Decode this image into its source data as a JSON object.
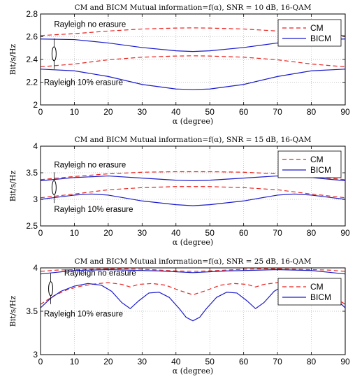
{
  "chart_data": [
    {
      "type": "line",
      "title": "CM and BICM Mutual information=f(α), SNR = 10 dB, 16-QAM",
      "xlabel": "α (degree)",
      "ylabel": "Bit/s/Hz",
      "xlim": [
        0,
        90
      ],
      "ylim": [
        2,
        2.8
      ],
      "xticks": [
        0,
        10,
        20,
        30,
        40,
        50,
        60,
        70,
        80,
        90
      ],
      "yticks": [
        2,
        2.2,
        2.4,
        2.6,
        2.8
      ],
      "xtick_labels": [
        "0",
        "10",
        "20",
        "30",
        "40",
        "50",
        "60",
        "70",
        "80",
        "90"
      ],
      "ytick_labels": [
        "2",
        "2.2",
        "2.4",
        "2.6",
        "2.8"
      ],
      "grid": true,
      "legend": {
        "position": "top-right",
        "entries": [
          {
            "label": "CM",
            "color": "#e8221e",
            "dash": true
          },
          {
            "label": "BICM",
            "color": "#1a1acc",
            "dash": false
          }
        ]
      },
      "annotations": [
        {
          "text": "Rayleigh no erasure",
          "x": 4,
          "y": 2.685
        },
        {
          "text": "Rayleigh 10% erasure",
          "x": 1,
          "y": 2.175
        }
      ],
      "ellipse": {
        "x": 4,
        "y": 2.45
      },
      "series": [
        {
          "name": "CM",
          "color": "#e8221e",
          "dash": true,
          "x": [
            0,
            10,
            20,
            30,
            40,
            45,
            50,
            60,
            70,
            80,
            90
          ],
          "y": [
            2.61,
            2.627,
            2.65,
            2.668,
            2.676,
            2.678,
            2.676,
            2.668,
            2.65,
            2.627,
            2.61
          ]
        },
        {
          "name": "BICM",
          "color": "#1a1acc",
          "dash": false,
          "x": [
            0,
            10,
            20,
            30,
            40,
            45,
            50,
            60,
            70,
            80,
            90
          ],
          "y": [
            2.58,
            2.575,
            2.545,
            2.505,
            2.476,
            2.47,
            2.476,
            2.505,
            2.545,
            2.575,
            2.58
          ]
        },
        {
          "name": "CM",
          "color": "#e8221e",
          "dash": true,
          "x": [
            0,
            10,
            20,
            30,
            40,
            45,
            50,
            60,
            70,
            80,
            90
          ],
          "y": [
            2.335,
            2.36,
            2.397,
            2.42,
            2.43,
            2.432,
            2.43,
            2.42,
            2.397,
            2.36,
            2.335
          ]
        },
        {
          "name": "BICM",
          "color": "#1a1acc",
          "dash": false,
          "x": [
            0,
            10,
            20,
            30,
            40,
            45,
            50,
            60,
            70,
            80,
            90
          ],
          "y": [
            2.315,
            2.3,
            2.25,
            2.18,
            2.14,
            2.135,
            2.14,
            2.18,
            2.25,
            2.3,
            2.315
          ]
        }
      ]
    },
    {
      "type": "line",
      "title": "CM and BICM Mutual information=f(α), SNR = 15 dB, 16-QAM",
      "xlabel": "α (degree)",
      "ylabel": "Bit/s/Hz",
      "xlim": [
        0,
        90
      ],
      "ylim": [
        2.5,
        4
      ],
      "xticks": [
        0,
        10,
        20,
        30,
        40,
        50,
        60,
        70,
        80,
        90
      ],
      "yticks": [
        2.5,
        3,
        3.5,
        4
      ],
      "xtick_labels": [
        "0",
        "10",
        "20",
        "30",
        "40",
        "50",
        "60",
        "70",
        "80",
        "90"
      ],
      "ytick_labels": [
        "2.5",
        "3",
        "3.5",
        "4"
      ],
      "grid": true,
      "legend": {
        "position": "top-right",
        "entries": [
          {
            "label": "CM",
            "color": "#e8221e",
            "dash": true
          },
          {
            "label": "BICM",
            "color": "#1a1acc",
            "dash": false
          }
        ]
      },
      "annotations": [
        {
          "text": "Rayleigh no erasure",
          "x": 4,
          "y": 3.6
        },
        {
          "text": "Rayleigh 10% erasure",
          "x": 4,
          "y": 2.76
        }
      ],
      "ellipse": {
        "x": 4,
        "y": 3.22
      },
      "series": [
        {
          "name": "CM",
          "color": "#e8221e",
          "dash": true,
          "x": [
            0,
            10,
            20,
            30,
            40,
            45,
            50,
            60,
            70,
            80,
            90
          ],
          "y": [
            3.37,
            3.43,
            3.48,
            3.51,
            3.52,
            3.52,
            3.52,
            3.51,
            3.48,
            3.43,
            3.37
          ]
        },
        {
          "name": "BICM",
          "color": "#1a1acc",
          "dash": false,
          "x": [
            0,
            5,
            10,
            20,
            30,
            40,
            45,
            50,
            60,
            70,
            80,
            85,
            90
          ],
          "y": [
            3.35,
            3.38,
            3.41,
            3.44,
            3.4,
            3.36,
            3.35,
            3.36,
            3.4,
            3.44,
            3.41,
            3.38,
            3.35
          ]
        },
        {
          "name": "CM",
          "color": "#e8221e",
          "dash": true,
          "x": [
            0,
            10,
            20,
            30,
            40,
            45,
            50,
            60,
            70,
            80,
            90
          ],
          "y": [
            3.03,
            3.1,
            3.18,
            3.22,
            3.24,
            3.24,
            3.24,
            3.22,
            3.18,
            3.1,
            3.03
          ]
        },
        {
          "name": "BICM",
          "color": "#1a1acc",
          "dash": false,
          "x": [
            0,
            5,
            10,
            15,
            20,
            30,
            40,
            45,
            50,
            60,
            70,
            75,
            80,
            85,
            90
          ],
          "y": [
            3.0,
            3.04,
            3.08,
            3.1,
            3.08,
            2.97,
            2.9,
            2.88,
            2.9,
            2.97,
            3.08,
            3.1,
            3.08,
            3.04,
            3.0
          ]
        }
      ]
    },
    {
      "type": "line",
      "title": "CM and BICM Mutual information=f(α), SNR = 25 dB, 16-QAM",
      "xlabel": "α (degree)",
      "ylabel": "Bit/s/Hz",
      "xlim": [
        0,
        90
      ],
      "ylim": [
        3,
        4
      ],
      "xticks": [
        0,
        10,
        20,
        30,
        40,
        50,
        60,
        70,
        80,
        90
      ],
      "yticks": [
        3,
        3.5,
        4
      ],
      "xtick_labels": [
        "0",
        "10",
        "20",
        "30",
        "40",
        "50",
        "60",
        "70",
        "80",
        "90"
      ],
      "ytick_labels": [
        "3",
        "3.5",
        "4"
      ],
      "grid": true,
      "legend": {
        "position": "top-right",
        "entries": [
          {
            "label": "CM",
            "color": "#e8221e",
            "dash": true
          },
          {
            "label": "BICM",
            "color": "#1a1acc",
            "dash": false
          }
        ]
      },
      "annotations": [
        {
          "text": "Rayleigh no erasure",
          "x": 7,
          "y": 3.91
        },
        {
          "text": "Rayleigh 10% erasure",
          "x": 1,
          "y": 3.44
        }
      ],
      "ellipse": {
        "x": 3,
        "y": 3.76
      },
      "series": [
        {
          "name": "CM",
          "color": "#e8221e",
          "dash": true,
          "x": [
            0,
            5,
            10,
            15,
            20,
            25,
            30,
            35,
            40,
            45,
            50,
            55,
            60,
            65,
            70,
            75,
            80,
            85,
            90
          ],
          "y": [
            3.96,
            3.975,
            3.98,
            3.985,
            3.99,
            3.99,
            3.985,
            3.975,
            3.965,
            3.96,
            3.965,
            3.975,
            3.985,
            3.99,
            3.99,
            3.985,
            3.98,
            3.975,
            3.96
          ]
        },
        {
          "name": "BICM",
          "color": "#1a1acc",
          "dash": false,
          "x": [
            0,
            5,
            10,
            15,
            20,
            25,
            30,
            35,
            40,
            45,
            50,
            55,
            60,
            65,
            70,
            75,
            80,
            85,
            90
          ],
          "y": [
            3.93,
            3.95,
            3.97,
            3.975,
            3.98,
            3.975,
            3.97,
            3.965,
            3.955,
            3.945,
            3.955,
            3.965,
            3.97,
            3.975,
            3.98,
            3.975,
            3.97,
            3.95,
            3.93
          ]
        },
        {
          "name": "CM",
          "color": "#e8221e",
          "dash": true,
          "x": [
            0,
            4,
            8,
            12,
            16,
            20,
            24,
            26.5,
            29,
            33,
            37,
            41,
            45,
            49,
            53,
            57,
            61,
            63.5,
            66,
            70,
            74,
            78,
            82,
            86,
            90
          ],
          "y": [
            3.58,
            3.68,
            3.75,
            3.79,
            3.815,
            3.83,
            3.81,
            3.78,
            3.81,
            3.82,
            3.8,
            3.74,
            3.69,
            3.74,
            3.8,
            3.82,
            3.81,
            3.78,
            3.81,
            3.83,
            3.815,
            3.79,
            3.75,
            3.68,
            3.58
          ]
        },
        {
          "name": "BICM",
          "color": "#1a1acc",
          "dash": false,
          "x": [
            0,
            3,
            6,
            10,
            14,
            18,
            21,
            24,
            26.5,
            29,
            32,
            35,
            38,
            41,
            43,
            45,
            47,
            49,
            52,
            55,
            58,
            61,
            63.5,
            66,
            69,
            72,
            76,
            80,
            84,
            87,
            90
          ],
          "y": [
            3.54,
            3.65,
            3.73,
            3.79,
            3.82,
            3.8,
            3.73,
            3.6,
            3.53,
            3.62,
            3.71,
            3.72,
            3.66,
            3.53,
            3.43,
            3.39,
            3.43,
            3.53,
            3.66,
            3.72,
            3.71,
            3.62,
            3.53,
            3.6,
            3.73,
            3.8,
            3.82,
            3.79,
            3.73,
            3.65,
            3.54
          ]
        }
      ]
    }
  ]
}
